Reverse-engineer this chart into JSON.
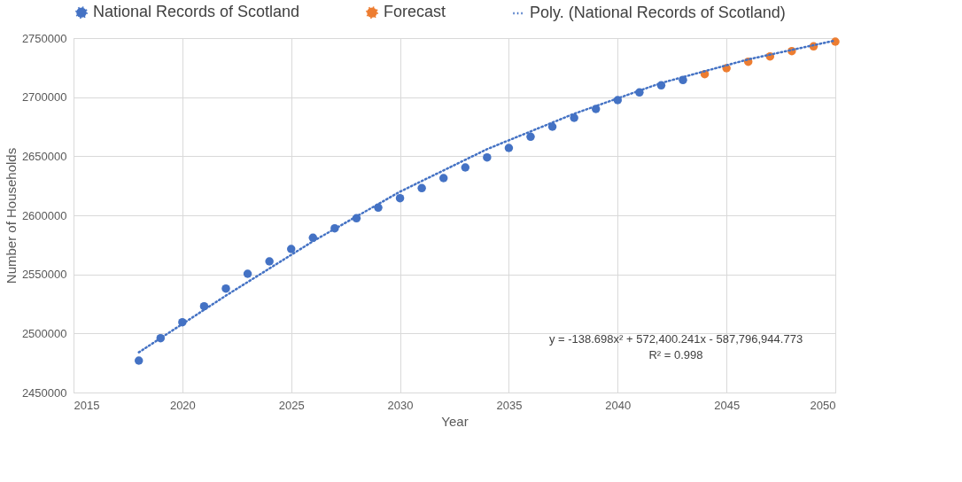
{
  "chart_data": {
    "type": "scatter",
    "xlabel": "Year",
    "ylabel": "Number of Households",
    "xlim": [
      2015,
      2050
    ],
    "xticks": [
      2015,
      2020,
      2025,
      2030,
      2035,
      2040,
      2045,
      2050
    ],
    "ylim": [
      2450000,
      2750000
    ],
    "yticks": [
      2450000,
      2500000,
      2550000,
      2600000,
      2650000,
      2700000,
      2750000
    ],
    "grid": true,
    "legend": "top",
    "series": [
      {
        "name": "National Records of Scotland",
        "type": "scatter",
        "marker": "circle",
        "color": "#4472c4",
        "x": [
          2018,
          2019,
          2020,
          2021,
          2022,
          2023,
          2024,
          2025,
          2026,
          2027,
          2028,
          2029,
          2030,
          2031,
          2032,
          2033,
          2034,
          2035,
          2036,
          2037,
          2038,
          2039,
          2040,
          2041,
          2042,
          2043
        ],
        "values": [
          2477000,
          2496000,
          2509500,
          2523000,
          2538000,
          2550500,
          2561000,
          2571500,
          2581000,
          2589000,
          2597500,
          2606500,
          2614500,
          2623000,
          2631500,
          2640500,
          2649000,
          2657000,
          2666500,
          2675000,
          2682500,
          2690000,
          2697500,
          2704000,
          2710000,
          2714500
        ]
      },
      {
        "name": "Forecast",
        "type": "scatter",
        "marker": "circle",
        "color": "#ed7d31",
        "x": [
          2044,
          2045,
          2046,
          2047,
          2048,
          2049,
          2050
        ],
        "values": [
          2719500,
          2724500,
          2730000,
          2734500,
          2739000,
          2743000,
          2747000
        ]
      },
      {
        "name": "Poly. (National Records of Scotland)",
        "type": "line",
        "line_style": "dotted",
        "color": "#4472c4",
        "x": [
          2018,
          2022,
          2026,
          2030,
          2034,
          2038,
          2042,
          2046,
          2050
        ],
        "values": [
          2484000,
          2532000,
          2578000,
          2620000,
          2656000,
          2686000,
          2712000,
          2732000,
          2748000
        ]
      }
    ],
    "annotations": [
      "y = -138.698x² + 572,400.241x - 587,796,944.773",
      "R² = 0.998"
    ]
  }
}
